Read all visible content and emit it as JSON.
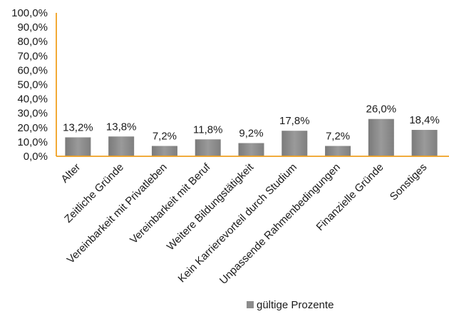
{
  "chart_data": {
    "type": "bar",
    "categories": [
      "Alter",
      "Zeitliche Gründe",
      "Vereinbarkeit mit Privatleben",
      "Vereinbarkeit mit Beruf",
      "Weitere Bildungstätigkeit",
      "Kein Karrierevorteil durch Studium",
      "Unpassende Rahmenbedingungen",
      "Finanzielle Gründe",
      "Sonstiges"
    ],
    "series": [
      {
        "name": "gültige Prozente",
        "values": [
          13.2,
          13.8,
          7.2,
          11.8,
          9.2,
          17.8,
          7.2,
          26.0,
          18.4
        ],
        "data_labels": [
          "13,2%",
          "13,8%",
          "7,2%",
          "11,8%",
          "9,2%",
          "17,8%",
          "7,2%",
          "26,0%",
          "18,4%"
        ]
      }
    ],
    "y_ticks": [
      "0,0%",
      "10,0%",
      "20,0%",
      "30,0%",
      "40,0%",
      "50,0%",
      "60,0%",
      "70,0%",
      "80,0%",
      "90,0%",
      "100,0%"
    ],
    "ylim": [
      0,
      100
    ],
    "grid": false,
    "legend_position": "bottom",
    "title": "",
    "xlabel": "",
    "ylabel": "",
    "colors": {
      "bar": "#8c8c8c",
      "axis": "#f0a020",
      "text": "#1a1a1a"
    }
  },
  "legend": {
    "label": "gültige Prozente"
  }
}
